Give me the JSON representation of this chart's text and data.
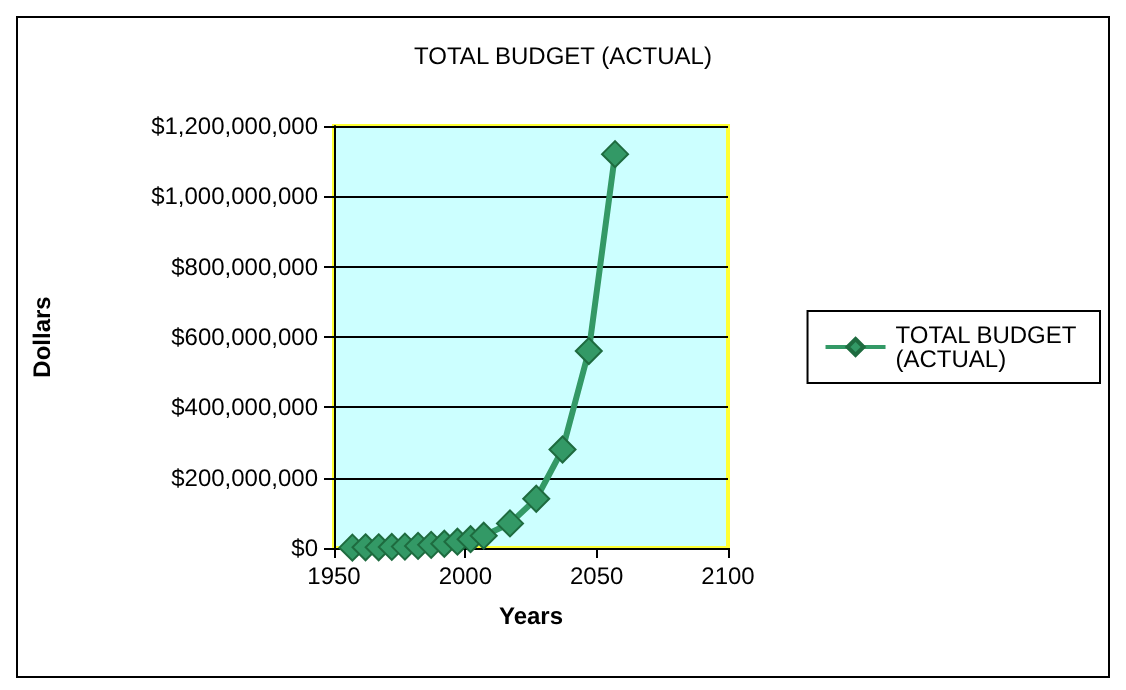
{
  "chart_data": {
    "type": "line",
    "title": "TOTAL BUDGET (ACTUAL)",
    "xlabel": "Years",
    "ylabel": "Dollars",
    "x": [
      1957,
      1962,
      1967,
      1972,
      1977,
      1982,
      1987,
      1992,
      1997,
      2002,
      2007,
      2017,
      2027,
      2037,
      2047,
      2057
    ],
    "series": [
      {
        "name": "TOTAL BUDGET (ACTUAL)",
        "color": "#339966",
        "values": [
          1000000,
          2000000,
          2000000,
          3000000,
          4000000,
          6000000,
          9000000,
          12000000,
          18000000,
          25000000,
          35000000,
          70000000,
          140000000,
          280000000,
          560000000,
          1120000000
        ]
      }
    ],
    "xlim": [
      1950,
      2100
    ],
    "xticks": [
      {
        "value": 1950,
        "label": "1950"
      },
      {
        "value": 2000,
        "label": "2000"
      },
      {
        "value": 2050,
        "label": "2050"
      },
      {
        "value": 2100,
        "label": "2100"
      }
    ],
    "ylim": [
      0,
      1200000000
    ],
    "yticks": [
      {
        "value": 0,
        "label": "$0"
      },
      {
        "value": 200000000,
        "label": "$200,000,000"
      },
      {
        "value": 400000000,
        "label": "$400,000,000"
      },
      {
        "value": 600000000,
        "label": "$600,000,000"
      },
      {
        "value": 800000000,
        "label": "$800,000,000"
      },
      {
        "value": 1000000000,
        "label": "$1,000,000,000"
      },
      {
        "value": 1200000000,
        "label": "$1,200,000,000"
      }
    ],
    "grid": "y",
    "legend": "right",
    "marker": "diamond",
    "line_style": "solid"
  }
}
